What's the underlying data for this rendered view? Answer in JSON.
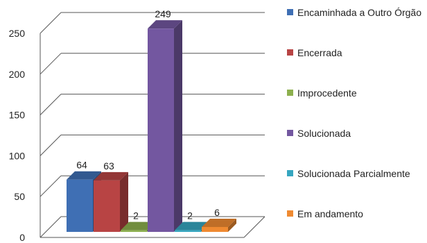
{
  "chart_data": {
    "type": "bar",
    "title": "",
    "xlabel": "",
    "ylabel": "",
    "ylim": [
      0,
      250
    ],
    "yticks": [
      "0",
      "50",
      "100",
      "150",
      "200",
      "250"
    ],
    "grid": true,
    "legend_position": "right",
    "categories": [
      "Encaminhada a Outro Órgão",
      "Encerrada",
      "Improcedente",
      "Solucionada",
      "Solucionada Parcialmente",
      "Em andamento"
    ],
    "values": [
      64,
      63,
      2,
      249,
      2,
      6
    ],
    "colors": [
      "#3f6fb4",
      "#b84444",
      "#8db04e",
      "#7357a0",
      "#36a6c0",
      "#ef8a31"
    ]
  }
}
